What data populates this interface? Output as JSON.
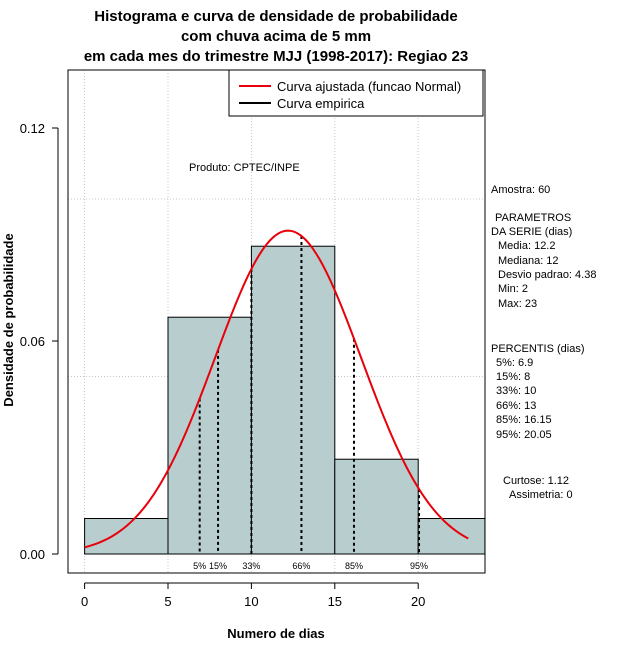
{
  "chart_data": {
    "type": "bar",
    "title_lines": [
      "Histograma e curva de densidade de probabilidade",
      "com chuva acima de 5 mm",
      "em cada mes do trimestre MJJ (1998-2017): Regiao 23"
    ],
    "xlabel": "Numero de dias",
    "ylabel": "Densidade de probabilidade",
    "xlim": [
      -1,
      24
    ],
    "ylim": [
      -0.005,
      0.135
    ],
    "x_ticks": [
      0,
      5,
      10,
      15,
      20
    ],
    "y_ticks": [
      0.0,
      0.06,
      0.12
    ],
    "y_tick_labels": [
      "0.00",
      "0.06",
      "0.12"
    ],
    "grid_y": [
      0.05,
      0.1
    ],
    "grid_x": [
      0,
      5,
      10,
      15,
      20
    ],
    "bins": [
      {
        "start": 0,
        "end": 5,
        "density": 0.01
      },
      {
        "start": 5,
        "end": 10,
        "density": 0.0667
      },
      {
        "start": 10,
        "end": 15,
        "density": 0.0867
      },
      {
        "start": 15,
        "end": 20,
        "density": 0.0267
      },
      {
        "start": 20,
        "end": 24,
        "density": 0.01
      }
    ],
    "bar_color": "#b8cece",
    "curve_color": "#e8000b",
    "normal_fit": {
      "mean": 12.2,
      "sd": 4.38,
      "x_from": 0,
      "x_to": 23
    },
    "percentile_lines": [
      {
        "label": "5%",
        "x": 6.9
      },
      {
        "label": "15%",
        "x": 8
      },
      {
        "label": "33%",
        "x": 10
      },
      {
        "label": "66%",
        "x": 13
      },
      {
        "label": "85%",
        "x": 16.15
      },
      {
        "label": "95%",
        "x": 20.05
      }
    ],
    "legend": {
      "position": "top-right",
      "entries": [
        {
          "label": "Curva ajustada (funcao Normal)",
          "color": "#e8000b"
        },
        {
          "label": "Curva empirica",
          "color": "#000000"
        }
      ]
    },
    "annotation": "Produto: CPTEC/INPE",
    "side_panel": [
      "Amostra: 60",
      "PARAMETROS",
      "DA SERIE (dias)",
      "Media: 12.2",
      "Mediana: 12",
      "Desvio padrao: 4.38",
      "Min: 2",
      "Max: 23",
      "PERCENTIS (dias)",
      "5%: 6.9",
      "15%: 8",
      "33%: 10",
      "66%: 13",
      "85%: 16.15",
      "95%: 20.05",
      "Curtose: 1.12",
      "Assimetria: 0"
    ]
  }
}
